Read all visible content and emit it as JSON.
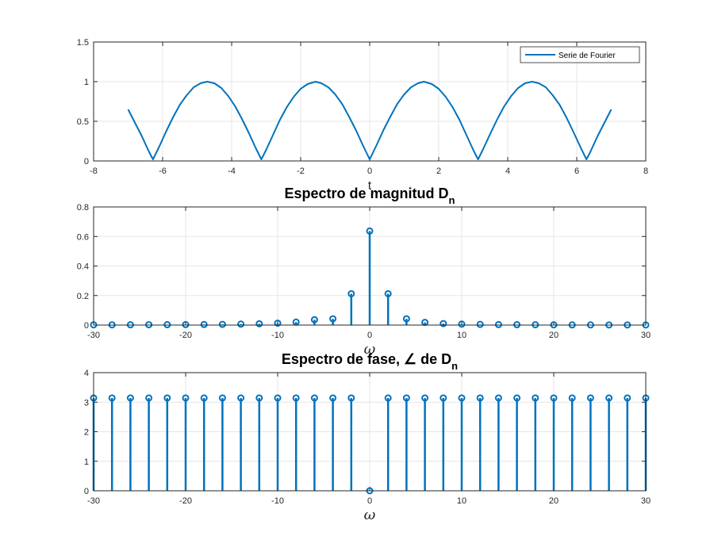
{
  "chart_data": [
    {
      "type": "line",
      "title": "",
      "xlabel": "t",
      "ylabel": "",
      "xlim": [
        -8,
        8
      ],
      "ylim": [
        0,
        1.5
      ],
      "xticks": [
        "-8",
        "-6",
        "-4",
        "-2",
        "0",
        "2",
        "4",
        "6",
        "8"
      ],
      "yticks": [
        "0",
        "0.5",
        "1",
        "1.5"
      ],
      "grid": true,
      "legend": "top-right",
      "color": "#0072BD",
      "series": [
        {
          "name": "Serie de Fourier",
          "x": [
            -7.0,
            -6.8,
            -6.6,
            -6.4,
            -6.28,
            -6.1,
            -5.9,
            -5.7,
            -5.5,
            -5.3,
            -5.1,
            -4.9,
            -4.71,
            -4.5,
            -4.3,
            -4.1,
            -3.9,
            -3.7,
            -3.5,
            -3.3,
            -3.14,
            -3.0,
            -2.8,
            -2.6,
            -2.4,
            -2.2,
            -2.0,
            -1.8,
            -1.57,
            -1.4,
            -1.2,
            -1.0,
            -0.8,
            -0.6,
            -0.4,
            -0.2,
            0.0,
            0.2,
            0.4,
            0.6,
            0.8,
            1.0,
            1.2,
            1.4,
            1.57,
            1.8,
            2.0,
            2.2,
            2.4,
            2.6,
            2.8,
            3.0,
            3.14,
            3.3,
            3.5,
            3.7,
            3.9,
            4.1,
            4.3,
            4.5,
            4.71,
            4.9,
            5.1,
            5.3,
            5.5,
            5.7,
            5.9,
            6.1,
            6.28,
            6.4,
            6.6,
            6.8,
            7.0
          ],
          "y": [
            0.65,
            0.48,
            0.31,
            0.12,
            0.02,
            0.18,
            0.37,
            0.55,
            0.71,
            0.83,
            0.93,
            0.98,
            1.0,
            0.98,
            0.92,
            0.82,
            0.69,
            0.53,
            0.35,
            0.16,
            0.02,
            0.14,
            0.33,
            0.52,
            0.68,
            0.81,
            0.91,
            0.97,
            1.0,
            0.98,
            0.93,
            0.84,
            0.72,
            0.56,
            0.39,
            0.2,
            0.02,
            0.2,
            0.39,
            0.56,
            0.72,
            0.84,
            0.93,
            0.98,
            1.0,
            0.97,
            0.91,
            0.81,
            0.68,
            0.52,
            0.33,
            0.14,
            0.02,
            0.16,
            0.35,
            0.53,
            0.69,
            0.82,
            0.92,
            0.98,
            1.0,
            0.98,
            0.93,
            0.83,
            0.71,
            0.55,
            0.37,
            0.18,
            0.02,
            0.12,
            0.31,
            0.48,
            0.65
          ]
        }
      ]
    },
    {
      "type": "stem",
      "title_main": "Espectro de magnitud D",
      "title_sub": "n",
      "xlabel": "ω",
      "ylabel": "",
      "xlim": [
        -30,
        30
      ],
      "ylim": [
        0,
        0.8
      ],
      "xticks": [
        "-30",
        "-20",
        "-10",
        "0",
        "10",
        "20",
        "30"
      ],
      "yticks": [
        "0",
        "0.2",
        "0.4",
        "0.6",
        "0.8"
      ],
      "grid": true,
      "color": "#0072BD",
      "x": [
        -30,
        -28,
        -26,
        -24,
        -22,
        -20,
        -18,
        -16,
        -14,
        -12,
        -10,
        -8,
        -6,
        -4,
        -2,
        0,
        2,
        4,
        6,
        8,
        10,
        12,
        14,
        16,
        18,
        20,
        22,
        24,
        26,
        28,
        30
      ],
      "y": [
        0.0014,
        0.0016,
        0.0019,
        0.0022,
        0.0026,
        0.0032,
        0.0039,
        0.005,
        0.0065,
        0.0088,
        0.0128,
        0.0201,
        0.0364,
        0.0424,
        0.2122,
        0.6366,
        0.2122,
        0.0424,
        0.0182,
        0.0101,
        0.0064,
        0.0044,
        0.0033,
        0.0025,
        0.002,
        0.0016,
        0.0013,
        0.0011,
        0.0009,
        0.0008,
        0.0007
      ]
    },
    {
      "type": "stem",
      "title_main": "Espectro de fase, ∠ de D",
      "title_sub": "n",
      "xlabel": "ω",
      "ylabel": "",
      "xlim": [
        -30,
        30
      ],
      "ylim": [
        0,
        4
      ],
      "xticks": [
        "-30",
        "-20",
        "-10",
        "0",
        "10",
        "20",
        "30"
      ],
      "yticks": [
        "0",
        "1",
        "2",
        "3",
        "4"
      ],
      "grid": true,
      "color": "#0072BD",
      "x": [
        -30,
        -28,
        -26,
        -24,
        -22,
        -20,
        -18,
        -16,
        -14,
        -12,
        -10,
        -8,
        -6,
        -4,
        -2,
        0,
        2,
        4,
        6,
        8,
        10,
        12,
        14,
        16,
        18,
        20,
        22,
        24,
        26,
        28,
        30
      ],
      "y": [
        3.1416,
        3.1416,
        3.1416,
        3.1416,
        3.1416,
        3.1416,
        3.1416,
        3.1416,
        3.1416,
        3.1416,
        3.1416,
        3.1416,
        3.1416,
        3.1416,
        3.1416,
        0,
        3.1416,
        3.1416,
        3.1416,
        3.1416,
        3.1416,
        3.1416,
        3.1416,
        3.1416,
        3.1416,
        3.1416,
        3.1416,
        3.1416,
        3.1416,
        3.1416,
        3.1416
      ]
    }
  ]
}
